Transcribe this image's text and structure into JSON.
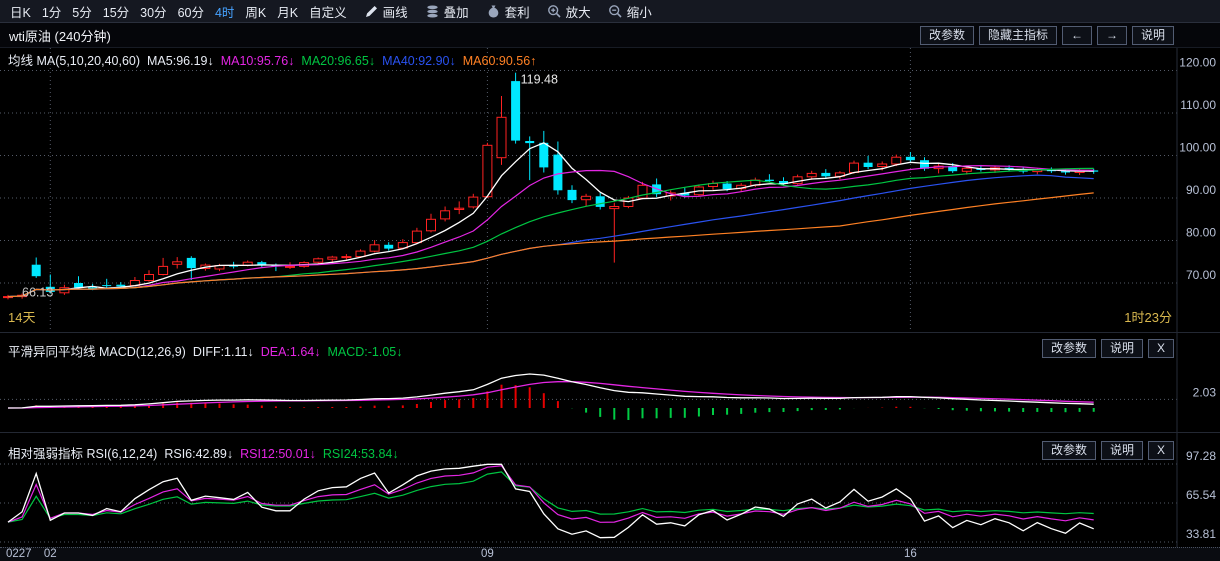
{
  "toolbar": {
    "selected": "4时",
    "tabs": [
      {
        "label": "日K"
      },
      {
        "label": "1分"
      },
      {
        "label": "5分"
      },
      {
        "label": "15分"
      },
      {
        "label": "30分"
      },
      {
        "label": "60分"
      },
      {
        "label": "4时"
      },
      {
        "label": "周K"
      },
      {
        "label": "月K"
      },
      {
        "label": "自定义"
      }
    ],
    "tools": [
      {
        "label": "画线",
        "icon": "pencil-icon"
      },
      {
        "label": "叠加",
        "icon": "layers-icon"
      },
      {
        "label": "套利",
        "icon": "moneybag-icon"
      },
      {
        "label": "放大",
        "icon": "zoom-in-icon"
      },
      {
        "label": "缩小",
        "icon": "zoom-out-icon"
      }
    ]
  },
  "titlebar": {
    "title": "wti原油 (240分钟)",
    "buttons": [
      {
        "label": "改参数",
        "name": "change-params-button"
      },
      {
        "label": "隐藏主指标",
        "name": "hide-main-indicator-button"
      },
      {
        "label": "←",
        "name": "scroll-left-button"
      },
      {
        "label": "→",
        "name": "scroll-right-button"
      },
      {
        "label": "说明",
        "name": "help-button"
      }
    ]
  },
  "main": {
    "readouts": [
      {
        "text": "均线 MA(5,10,20,40,60)",
        "color": "#e8ecf4"
      },
      {
        "text": "MA5:96.19↓",
        "color": "#e8ecf4"
      },
      {
        "text": "MA10:95.76↓",
        "color": "#e326e3"
      },
      {
        "text": "MA20:96.65↓",
        "color": "#00c542"
      },
      {
        "text": "MA40:92.90↓",
        "color": "#2a52f0"
      },
      {
        "text": "MA60:90.56↑",
        "color": "#ff8124"
      }
    ]
  },
  "macd": {
    "readouts": [
      {
        "text": "平滑异同平均线 MACD(12,26,9)",
        "color": "#e8ecf4"
      },
      {
        "text": "DIFF:1.11↓",
        "color": "#e8ecf4"
      },
      {
        "text": "DEA:1.64↓",
        "color": "#e326e3"
      },
      {
        "text": "MACD:-1.05↓",
        "color": "#00c542"
      }
    ],
    "buttons": [
      {
        "label": "改参数",
        "name": "macd-change-params-button"
      },
      {
        "label": "说明",
        "name": "macd-help-button"
      },
      {
        "label": "X",
        "name": "macd-close-button"
      }
    ]
  },
  "rsi": {
    "readouts": [
      {
        "text": "相对强弱指标 RSI(6,12,24)",
        "color": "#e8ecf4"
      },
      {
        "text": "RSI6:42.89↓",
        "color": "#e8ecf4"
      },
      {
        "text": "RSI12:50.01↓",
        "color": "#e326e3"
      },
      {
        "text": "RSI24:53.84↓",
        "color": "#00c542"
      }
    ],
    "buttons": [
      {
        "label": "改参数",
        "name": "rsi-change-params-button"
      },
      {
        "label": "说明",
        "name": "rsi-help-button"
      },
      {
        "label": "X",
        "name": "rsi-close-button"
      }
    ]
  },
  "chart_data": {
    "type": "candlestick",
    "title": "wti原油 (240分钟)",
    "y_ticks": [
      120,
      110,
      100,
      90,
      80,
      70
    ],
    "annotations": {
      "peak": "119.48",
      "low": "66.13",
      "left_days": "14天",
      "right_countdown": "1时23分"
    },
    "x_labels": [
      {
        "text": "0227",
        "bar": 0,
        "align": "left"
      },
      {
        "text": "02",
        "bar": 3,
        "align": "center"
      },
      {
        "text": "09",
        "bar": 34,
        "align": "center"
      },
      {
        "text": "16",
        "bar": 64,
        "align": "center"
      }
    ],
    "v_gridline_bars": [
      3,
      34,
      64
    ],
    "colors": {
      "up": "#ff2222",
      "down": "#00e8ff",
      "ma": [
        "#ffffff",
        "#e326e3",
        "#00c542",
        "#2a52f0",
        "#ff8124"
      ],
      "macd_diff": "#ffffff",
      "macd_dea": "#e326e3",
      "hist_pos": "#e60000",
      "hist_neg": "#00cc44",
      "grid": "#555b68",
      "axis_text": "#b8c1d6",
      "border": "#262c38"
    },
    "indicators": {
      "ma": {
        "periods": [
          5,
          10,
          20,
          40,
          60
        ],
        "values": {
          "MA5": 96.19,
          "MA10": 95.76,
          "MA20": 96.65,
          "MA40": 92.9,
          "MA60": 90.56
        }
      },
      "macd": {
        "params": [
          12,
          26,
          9
        ],
        "diff": 1.11,
        "dea": 1.64,
        "macd": -1.05,
        "scale_tick": 2.03
      },
      "rsi": {
        "params": [
          6,
          12,
          24
        ],
        "rsi6": 42.89,
        "rsi12": 50.01,
        "rsi24": 53.84,
        "scale_ticks": [
          97.28,
          65.54,
          33.81
        ]
      }
    },
    "candles": [
      [
        66.6,
        67.2,
        66.13,
        66.8
      ],
      [
        66.8,
        67.5,
        66.3,
        67.1
      ],
      [
        74.3,
        76.0,
        71.2,
        71.6
      ],
      [
        69.1,
        72.0,
        67.5,
        67.9
      ],
      [
        67.7,
        69.6,
        67.2,
        68.9
      ],
      [
        70.0,
        71.6,
        68.5,
        68.9
      ],
      [
        69.0,
        69.8,
        68.3,
        68.7
      ],
      [
        69.5,
        71.0,
        68.9,
        69.4
      ],
      [
        69.6,
        70.2,
        68.8,
        69.2
      ],
      [
        69.4,
        71.4,
        69.2,
        70.6
      ],
      [
        70.6,
        73.0,
        70.3,
        72.0
      ],
      [
        72.0,
        75.9,
        71.8,
        73.9
      ],
      [
        74.4,
        76.1,
        73.4,
        75.0
      ],
      [
        75.9,
        76.3,
        70.7,
        73.5
      ],
      [
        73.4,
        74.6,
        72.9,
        74.2
      ],
      [
        73.3,
        74.5,
        72.8,
        74.1
      ],
      [
        74.1,
        75.0,
        73.4,
        74.0
      ],
      [
        74.2,
        75.3,
        73.9,
        74.9
      ],
      [
        74.9,
        75.2,
        73.8,
        74.1
      ],
      [
        74.2,
        74.6,
        72.8,
        73.9
      ],
      [
        73.8,
        74.9,
        73.3,
        73.9
      ],
      [
        73.9,
        75.1,
        73.6,
        74.8
      ],
      [
        74.9,
        76.0,
        74.4,
        75.7
      ],
      [
        75.6,
        76.4,
        75.0,
        76.1
      ],
      [
        76.1,
        76.8,
        75.5,
        76.2
      ],
      [
        76.2,
        77.9,
        75.9,
        77.5
      ],
      [
        77.5,
        80.1,
        77.2,
        79.0
      ],
      [
        79.0,
        79.6,
        77.6,
        78.1
      ],
      [
        78.2,
        80.3,
        77.9,
        79.5
      ],
      [
        79.5,
        83.0,
        79.2,
        82.2
      ],
      [
        82.3,
        86.3,
        81.9,
        85.0
      ],
      [
        85.1,
        88.0,
        84.5,
        87.0
      ],
      [
        87.3,
        89.2,
        86.2,
        87.6
      ],
      [
        87.9,
        91.0,
        87.5,
        90.2
      ],
      [
        90.3,
        103.0,
        90.0,
        102.4
      ],
      [
        99.5,
        114.0,
        97.8,
        109.0
      ],
      [
        117.5,
        119.48,
        102.8,
        103.5
      ],
      [
        103.4,
        104.5,
        94.2,
        102.9
      ],
      [
        103.0,
        105.8,
        96.0,
        97.2
      ],
      [
        100.2,
        103.3,
        90.8,
        91.8
      ],
      [
        91.9,
        93.0,
        88.8,
        89.5
      ],
      [
        89.6,
        91.0,
        88.0,
        90.4
      ],
      [
        90.4,
        91.2,
        87.3,
        87.9
      ],
      [
        87.5,
        88.9,
        74.8,
        88.0
      ],
      [
        88.0,
        90.5,
        87.6,
        90.0
      ],
      [
        90.0,
        93.8,
        89.7,
        93.0
      ],
      [
        93.2,
        94.6,
        90.2,
        90.9
      ],
      [
        90.5,
        91.8,
        89.4,
        91.2
      ],
      [
        91.2,
        92.4,
        90.1,
        90.6
      ],
      [
        90.8,
        93.2,
        90.4,
        92.6
      ],
      [
        92.7,
        94.1,
        91.9,
        93.4
      ],
      [
        93.4,
        94.0,
        91.6,
        92.1
      ],
      [
        92.2,
        93.5,
        91.5,
        93.0
      ],
      [
        93.0,
        94.8,
        92.6,
        94.2
      ],
      [
        94.3,
        95.6,
        93.7,
        94.0
      ],
      [
        94.0,
        94.9,
        92.8,
        93.3
      ],
      [
        93.4,
        95.5,
        93.1,
        95.0
      ],
      [
        95.0,
        96.4,
        94.3,
        95.8
      ],
      [
        95.9,
        96.8,
        94.6,
        95.1
      ],
      [
        95.1,
        96.3,
        94.4,
        95.9
      ],
      [
        96.0,
        98.8,
        95.7,
        98.2
      ],
      [
        98.3,
        99.9,
        96.8,
        97.3
      ],
      [
        97.4,
        98.6,
        96.5,
        98.0
      ],
      [
        98.0,
        100.2,
        97.5,
        99.6
      ],
      [
        99.7,
        100.8,
        98.4,
        98.9
      ],
      [
        98.9,
        99.6,
        96.4,
        96.9
      ],
      [
        96.9,
        98.0,
        95.8,
        97.5
      ],
      [
        97.5,
        98.2,
        95.9,
        96.3
      ],
      [
        96.3,
        97.4,
        95.5,
        97.0
      ],
      [
        97.0,
        97.8,
        96.2,
        96.6
      ],
      [
        96.6,
        97.5,
        95.9,
        97.1
      ],
      [
        97.1,
        97.7,
        96.3,
        96.8
      ],
      [
        96.8,
        97.4,
        95.8,
        96.2
      ],
      [
        96.2,
        97.0,
        95.6,
        96.7
      ],
      [
        96.7,
        97.2,
        95.9,
        96.3
      ],
      [
        96.3,
        96.9,
        95.5,
        96.0
      ],
      [
        96.0,
        96.8,
        95.4,
        96.5
      ],
      [
        96.5,
        96.9,
        95.7,
        96.19
      ]
    ]
  }
}
